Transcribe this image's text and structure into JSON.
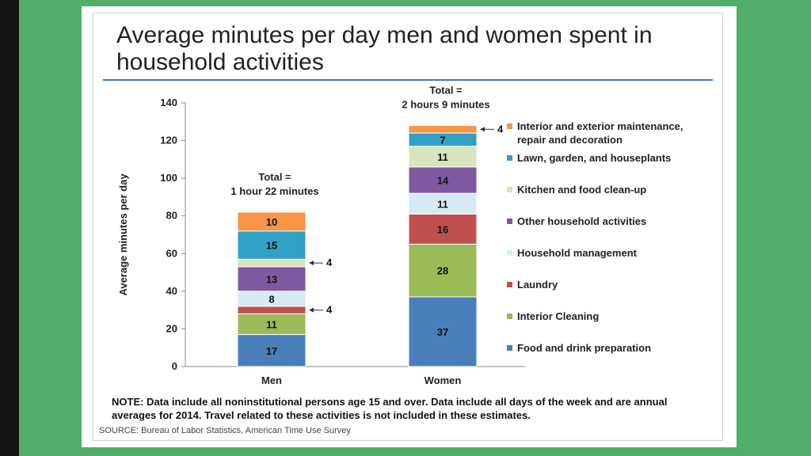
{
  "title": "Average minutes per day men and women spent in household activities",
  "note": "NOTE: Data include all noninstitutional persons age 15 and over. Data include all days of the week and are annual averages for 2014. Travel related to these activities is not included in these estimates.",
  "source": "SOURCE: Bureau of Labor Statistics, American Time Use Survey",
  "chart_data": {
    "type": "bar",
    "stacked": true,
    "categories": [
      "Men",
      "Women"
    ],
    "ylabel": "Average minutes per day",
    "ylim": [
      0,
      140
    ],
    "yticks": [
      0,
      20,
      40,
      60,
      80,
      100,
      120,
      140
    ],
    "grid": false,
    "legend_position": "right",
    "series": [
      {
        "name": "Food and drink preparation",
        "color": "#4a7ebb",
        "values": [
          17,
          37
        ],
        "labels": [
          "17",
          "37"
        ]
      },
      {
        "name": "Interior Cleaning",
        "color": "#9bbb59",
        "values": [
          11,
          28
        ],
        "labels": [
          "11",
          "28"
        ]
      },
      {
        "name": "Laundry",
        "color": "#c0504d",
        "values": [
          4,
          16
        ],
        "labels": [
          "4",
          "16"
        ]
      },
      {
        "name": "Household management",
        "color": "#d5eaf3",
        "values": [
          8,
          11
        ],
        "labels": [
          "8",
          "11"
        ]
      },
      {
        "name": "Other household activities",
        "color": "#7d5aa0",
        "values": [
          13,
          14
        ],
        "labels": [
          "13",
          "14"
        ]
      },
      {
        "name": "Kitchen and food clean-up",
        "color": "#d7e4bd",
        "values": [
          4,
          11
        ],
        "labels": [
          "4",
          "11"
        ]
      },
      {
        "name": "Lawn, garden, and houseplants",
        "color": "#31a0c6",
        "values": [
          15,
          7
        ],
        "labels": [
          "15",
          "7"
        ]
      },
      {
        "name": "Interior and exterior maintenance, repair and decoration",
        "legend_lines": [
          "Interior and exterior maintenance,",
          "repair and decoration"
        ],
        "color": "#f79646",
        "values": [
          10,
          4
        ],
        "labels": [
          "10",
          "4"
        ]
      }
    ],
    "totals": [
      {
        "line1": "Total =",
        "line2": "1 hour  22 minutes"
      },
      {
        "line1": "Total =",
        "line2": "2 hours 9 minutes"
      }
    ]
  }
}
